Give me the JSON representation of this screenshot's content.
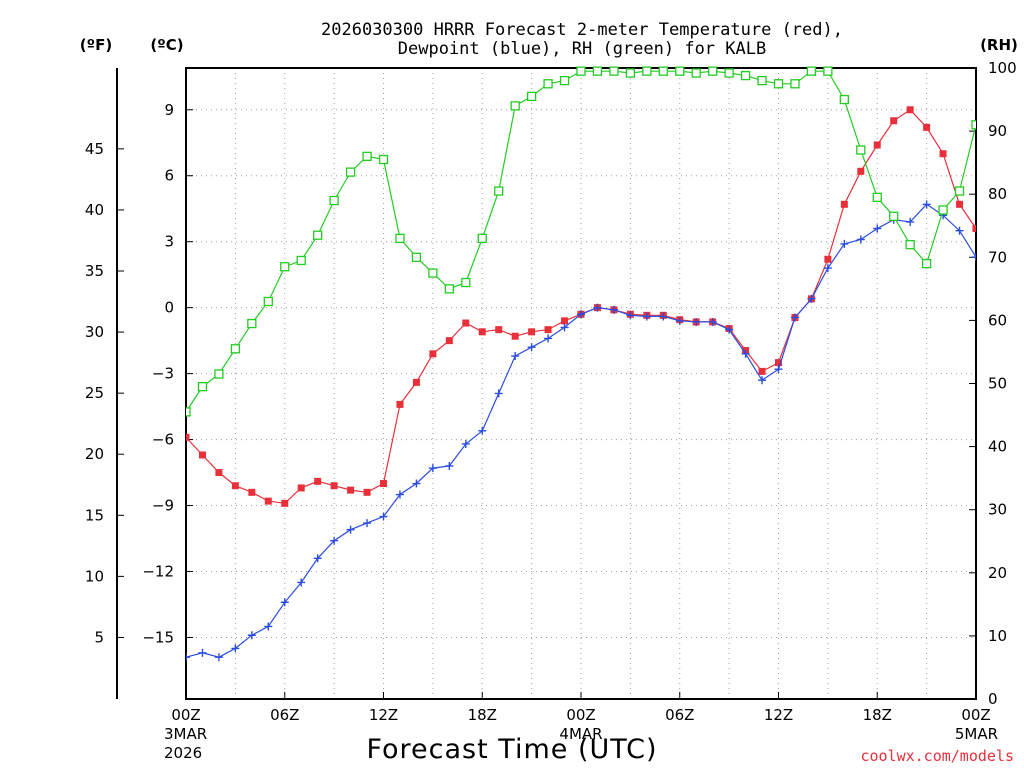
{
  "chart_data": {
    "type": "line",
    "title": "2026030300 HRRR Forecast 2-meter Temperature (red),",
    "subtitle": "Dewpoint (blue), RH (green) for KALB",
    "xlabel": "Forecast Time (UTC)",
    "credit": "coolwx.com/models",
    "left_outer_unit": "(ºF)",
    "left_inner_unit": "(ºC)",
    "right_unit": "(RH)",
    "x_forecast_hours": [
      0,
      1,
      2,
      3,
      4,
      5,
      6,
      7,
      8,
      9,
      10,
      11,
      12,
      13,
      14,
      15,
      16,
      17,
      18,
      19,
      20,
      21,
      22,
      23,
      24,
      25,
      26,
      27,
      28,
      29,
      30,
      31,
      32,
      33,
      34,
      35,
      36,
      37,
      38,
      39,
      40,
      41,
      42,
      43,
      44,
      45,
      46,
      47,
      48
    ],
    "xlim": [
      0,
      48
    ],
    "x_ticks": [
      {
        "hour": 0,
        "label": "00Z",
        "date": "3MAR",
        "year": "2026"
      },
      {
        "hour": 6,
        "label": "06Z",
        "date": "",
        "year": ""
      },
      {
        "hour": 12,
        "label": "12Z",
        "date": "",
        "year": ""
      },
      {
        "hour": 18,
        "label": "18Z",
        "date": "",
        "year": ""
      },
      {
        "hour": 24,
        "label": "00Z",
        "date": "4MAR",
        "year": ""
      },
      {
        "hour": 30,
        "label": "06Z",
        "date": "",
        "year": ""
      },
      {
        "hour": 36,
        "label": "12Z",
        "date": "",
        "year": ""
      },
      {
        "hour": 42,
        "label": "18Z",
        "date": "",
        "year": ""
      },
      {
        "hour": 48,
        "label": "00Z",
        "date": "5MAR",
        "year": ""
      }
    ],
    "ylim_celsius": [
      -17.8,
      10.9
    ],
    "y_ticks_celsius": [
      "−15",
      "−12",
      "−9",
      "−6",
      "−3",
      "0",
      "3",
      "6",
      "9"
    ],
    "y_ticks_fahrenheit": [
      "5",
      "10",
      "15",
      "20",
      "25",
      "30",
      "35",
      "40",
      "45"
    ],
    "ylim_rh": [
      0,
      100
    ],
    "y_ticks_rh": [
      "0",
      "10",
      "20",
      "30",
      "40",
      "50",
      "60",
      "70",
      "80",
      "90",
      "100"
    ],
    "series": [
      {
        "name": "2-meter Temperature",
        "unit": "C",
        "color": "#e8303a",
        "marker": "filled-square",
        "values": [
          -5.9,
          -6.7,
          -7.5,
          -8.1,
          -8.4,
          -8.8,
          -8.9,
          -8.2,
          -7.9,
          -8.1,
          -8.3,
          -8.4,
          -8.0,
          -4.4,
          -3.4,
          -2.1,
          -1.5,
          -0.7,
          -1.1,
          -1.0,
          -1.3,
          -1.1,
          -1.0,
          -0.6,
          -0.3,
          0.0,
          -0.1,
          -0.3,
          -0.35,
          -0.35,
          -0.55,
          -0.65,
          -0.65,
          -0.95,
          -1.95,
          -2.9,
          -2.5,
          -0.45,
          0.4,
          2.2,
          4.7,
          6.2,
          7.4,
          8.5,
          9.0,
          8.2,
          7.0,
          4.7,
          3.6
        ]
      },
      {
        "name": "Dewpoint",
        "unit": "C",
        "color": "#2a4de0",
        "marker": "plus",
        "values": [
          -15.9,
          -15.7,
          -15.9,
          -15.5,
          -14.9,
          -14.5,
          -13.4,
          -12.5,
          -11.4,
          -10.6,
          -10.1,
          -9.8,
          -9.5,
          -8.5,
          -8.0,
          -7.3,
          -7.2,
          -6.2,
          -5.6,
          -3.9,
          -2.2,
          -1.8,
          -1.4,
          -0.9,
          -0.3,
          0.0,
          -0.1,
          -0.35,
          -0.4,
          -0.4,
          -0.6,
          -0.65,
          -0.65,
          -1.0,
          -2.1,
          -3.3,
          -2.8,
          -0.45,
          0.4,
          1.8,
          2.9,
          3.1,
          3.6,
          4.0,
          3.9,
          4.7,
          4.2,
          3.5,
          2.3
        ]
      },
      {
        "name": "RH",
        "unit": "%",
        "color": "#22cc22",
        "marker": "open-square",
        "values": [
          45.5,
          49.5,
          51.5,
          55.5,
          59.5,
          63,
          68.5,
          69.5,
          73.5,
          79,
          83.5,
          86,
          85.5,
          73,
          70,
          67.5,
          65,
          66,
          73,
          80.5,
          94,
          95.5,
          97.5,
          98,
          99.5,
          99.5,
          99.5,
          99.2,
          99.5,
          99.5,
          99.5,
          99.2,
          99.5,
          99.2,
          98.8,
          98,
          97.5,
          97.5,
          99.5,
          99.5,
          95,
          87,
          79.5,
          76.5,
          72,
          69,
          77.5,
          80.5,
          91
        ]
      }
    ]
  }
}
